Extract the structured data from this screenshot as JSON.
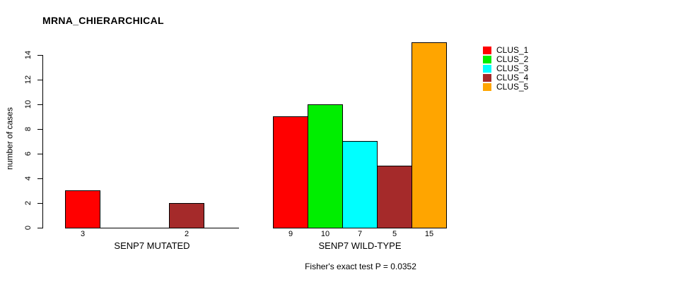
{
  "chart_data": {
    "type": "bar",
    "title": "MRNA_CHIERARCHICAL",
    "ylabel": "number of cases",
    "xlabel": "",
    "ylim": [
      0,
      15
    ],
    "yticks": [
      0,
      2,
      4,
      6,
      8,
      10,
      12,
      14
    ],
    "grid": false,
    "legend_position": "top-right-outside-bars",
    "categories": [
      "SENP7 MUTATED",
      "SENP7 WILD-TYPE"
    ],
    "series": [
      {
        "name": "CLUS_1",
        "color": "#ff0000",
        "values": [
          3,
          9
        ]
      },
      {
        "name": "CLUS_2",
        "color": "#00ee00",
        "values": [
          0,
          10
        ]
      },
      {
        "name": "CLUS_3",
        "color": "#00ffff",
        "values": [
          0,
          7
        ]
      },
      {
        "name": "CLUS_4",
        "color": "#a52a2a",
        "values": [
          2,
          5
        ]
      },
      {
        "name": "CLUS_5",
        "color": "#ffa500",
        "values": [
          0,
          15
        ]
      }
    ],
    "bar_value_labels": {
      "SENP7 MUTATED": [
        3,
        null,
        null,
        2,
        null
      ],
      "SENP7 WILD-TYPE": [
        9,
        10,
        7,
        5,
        15
      ]
    },
    "annotation": "Fisher's exact test P = 0.0352",
    "axis_color": "#000000",
    "bar_border_color": "#000000",
    "background_color": "#ffffff"
  }
}
